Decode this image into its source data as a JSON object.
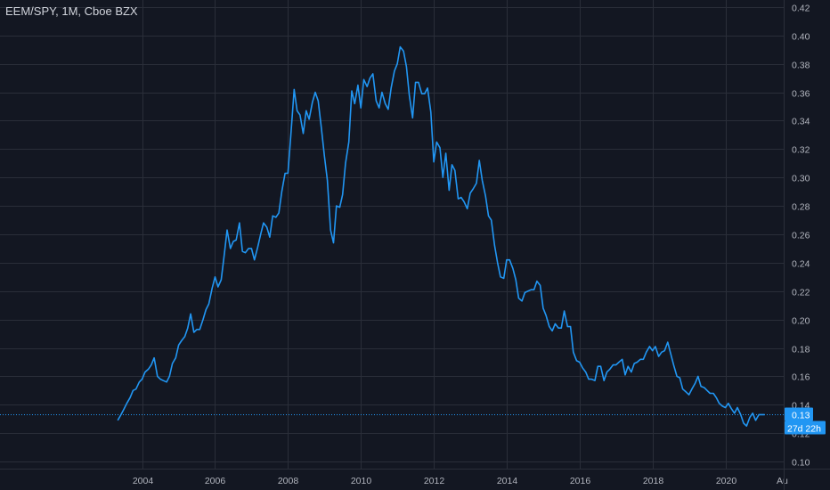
{
  "header": {
    "symbol_label": "EEM/SPY, 1M, Cboe BZX"
  },
  "colors": {
    "background": "#131722",
    "grid": "#2a2e39",
    "line": "#2196f3",
    "text": "#b2b5be",
    "badge": "#2196f3",
    "badge_text": "#ffffff"
  },
  "price_badge": {
    "value": "0.13",
    "countdown": "27d 22h"
  },
  "chart_data": {
    "type": "line",
    "title": "EEM/SPY, 1M, Cboe BZX",
    "xlabel": "",
    "ylabel": "",
    "xlim": [
      2000.1,
      2021.6
    ],
    "ylim": [
      0.095,
      0.425
    ],
    "x_ticks": [
      2004,
      2006,
      2008,
      2010,
      2012,
      2014,
      2016,
      2018,
      2020
    ],
    "x_tick_labels": [
      "2004",
      "2006",
      "2008",
      "2010",
      "2012",
      "2014",
      "2016",
      "2018",
      "2020"
    ],
    "x_extra_label": "Au",
    "y_ticks": [
      0.1,
      0.12,
      0.14,
      0.16,
      0.18,
      0.2,
      0.22,
      0.24,
      0.26,
      0.28,
      0.3,
      0.32,
      0.34,
      0.36,
      0.38,
      0.4,
      0.42
    ],
    "y_tick_labels": [
      "0.10",
      "0.12",
      "0.14",
      "0.16",
      "0.18",
      "0.20",
      "0.22",
      "0.24",
      "0.26",
      "0.28",
      "0.30",
      "0.32",
      "0.34",
      "0.36",
      "0.38",
      "0.40",
      "0.42"
    ],
    "grid": true,
    "current_value": 0.133,
    "series": [
      {
        "name": "",
        "points": [
          [
            2003.33,
            0.129
          ],
          [
            2003.42,
            0.133
          ],
          [
            2003.5,
            0.137
          ],
          [
            2003.58,
            0.141
          ],
          [
            2003.67,
            0.145
          ],
          [
            2003.75,
            0.15
          ],
          [
            2003.83,
            0.151
          ],
          [
            2003.92,
            0.156
          ],
          [
            2004.0,
            0.158
          ],
          [
            2004.08,
            0.163
          ],
          [
            2004.17,
            0.165
          ],
          [
            2004.25,
            0.168
          ],
          [
            2004.33,
            0.173
          ],
          [
            2004.42,
            0.16
          ],
          [
            2004.5,
            0.158
          ],
          [
            2004.58,
            0.157
          ],
          [
            2004.67,
            0.156
          ],
          [
            2004.75,
            0.16
          ],
          [
            2004.83,
            0.169
          ],
          [
            2004.92,
            0.173
          ],
          [
            2005.0,
            0.182
          ],
          [
            2005.08,
            0.185
          ],
          [
            2005.17,
            0.188
          ],
          [
            2005.25,
            0.194
          ],
          [
            2005.33,
            0.204
          ],
          [
            2005.42,
            0.191
          ],
          [
            2005.5,
            0.193
          ],
          [
            2005.58,
            0.193
          ],
          [
            2005.67,
            0.2
          ],
          [
            2005.75,
            0.207
          ],
          [
            2005.83,
            0.211
          ],
          [
            2005.92,
            0.222
          ],
          [
            2006.0,
            0.23
          ],
          [
            2006.08,
            0.223
          ],
          [
            2006.17,
            0.228
          ],
          [
            2006.25,
            0.245
          ],
          [
            2006.33,
            0.263
          ],
          [
            2006.42,
            0.25
          ],
          [
            2006.5,
            0.255
          ],
          [
            2006.58,
            0.256
          ],
          [
            2006.67,
            0.268
          ],
          [
            2006.75,
            0.248
          ],
          [
            2006.83,
            0.247
          ],
          [
            2006.92,
            0.25
          ],
          [
            2007.0,
            0.25
          ],
          [
            2007.08,
            0.242
          ],
          [
            2007.17,
            0.251
          ],
          [
            2007.25,
            0.26
          ],
          [
            2007.33,
            0.268
          ],
          [
            2007.42,
            0.265
          ],
          [
            2007.5,
            0.258
          ],
          [
            2007.58,
            0.273
          ],
          [
            2007.67,
            0.272
          ],
          [
            2007.75,
            0.275
          ],
          [
            2007.83,
            0.29
          ],
          [
            2007.92,
            0.303
          ],
          [
            2008.0,
            0.303
          ],
          [
            2008.08,
            0.33
          ],
          [
            2008.17,
            0.362
          ],
          [
            2008.25,
            0.347
          ],
          [
            2008.33,
            0.344
          ],
          [
            2008.42,
            0.331
          ],
          [
            2008.5,
            0.347
          ],
          [
            2008.58,
            0.341
          ],
          [
            2008.67,
            0.353
          ],
          [
            2008.75,
            0.36
          ],
          [
            2008.83,
            0.354
          ],
          [
            2008.92,
            0.334
          ],
          [
            2009.0,
            0.315
          ],
          [
            2009.08,
            0.298
          ],
          [
            2009.17,
            0.263
          ],
          [
            2009.25,
            0.254
          ],
          [
            2009.33,
            0.28
          ],
          [
            2009.42,
            0.279
          ],
          [
            2009.5,
            0.288
          ],
          [
            2009.58,
            0.31
          ],
          [
            2009.67,
            0.325
          ],
          [
            2009.75,
            0.361
          ],
          [
            2009.83,
            0.352
          ],
          [
            2009.92,
            0.365
          ],
          [
            2010.0,
            0.349
          ],
          [
            2010.08,
            0.369
          ],
          [
            2010.17,
            0.364
          ],
          [
            2010.25,
            0.37
          ],
          [
            2010.33,
            0.373
          ],
          [
            2010.42,
            0.354
          ],
          [
            2010.5,
            0.349
          ],
          [
            2010.58,
            0.36
          ],
          [
            2010.67,
            0.352
          ],
          [
            2010.75,
            0.348
          ],
          [
            2010.83,
            0.363
          ],
          [
            2010.92,
            0.375
          ],
          [
            2011.0,
            0.38
          ],
          [
            2011.08,
            0.392
          ],
          [
            2011.17,
            0.389
          ],
          [
            2011.25,
            0.378
          ],
          [
            2011.33,
            0.358
          ],
          [
            2011.42,
            0.342
          ],
          [
            2011.5,
            0.367
          ],
          [
            2011.58,
            0.367
          ],
          [
            2011.67,
            0.359
          ],
          [
            2011.75,
            0.359
          ],
          [
            2011.83,
            0.363
          ],
          [
            2011.92,
            0.346
          ],
          [
            2012.0,
            0.311
          ],
          [
            2012.08,
            0.325
          ],
          [
            2012.17,
            0.321
          ],
          [
            2012.25,
            0.3
          ],
          [
            2012.33,
            0.317
          ],
          [
            2012.42,
            0.291
          ],
          [
            2012.5,
            0.309
          ],
          [
            2012.58,
            0.305
          ],
          [
            2012.67,
            0.285
          ],
          [
            2012.75,
            0.286
          ],
          [
            2012.83,
            0.283
          ],
          [
            2012.92,
            0.278
          ],
          [
            2013.0,
            0.289
          ],
          [
            2013.08,
            0.292
          ],
          [
            2013.17,
            0.296
          ],
          [
            2013.25,
            0.312
          ],
          [
            2013.33,
            0.298
          ],
          [
            2013.42,
            0.287
          ],
          [
            2013.5,
            0.273
          ],
          [
            2013.58,
            0.27
          ],
          [
            2013.67,
            0.252
          ],
          [
            2013.75,
            0.24
          ],
          [
            2013.83,
            0.23
          ],
          [
            2013.92,
            0.229
          ],
          [
            2014.0,
            0.242
          ],
          [
            2014.08,
            0.242
          ],
          [
            2014.17,
            0.236
          ],
          [
            2014.25,
            0.228
          ],
          [
            2014.33,
            0.215
          ],
          [
            2014.42,
            0.213
          ],
          [
            2014.5,
            0.219
          ],
          [
            2014.58,
            0.22
          ],
          [
            2014.67,
            0.221
          ],
          [
            2014.75,
            0.221
          ],
          [
            2014.83,
            0.227
          ],
          [
            2014.92,
            0.224
          ],
          [
            2015.0,
            0.208
          ],
          [
            2015.08,
            0.203
          ],
          [
            2015.17,
            0.195
          ],
          [
            2015.25,
            0.192
          ],
          [
            2015.33,
            0.197
          ],
          [
            2015.42,
            0.194
          ],
          [
            2015.5,
            0.194
          ],
          [
            2015.58,
            0.206
          ],
          [
            2015.67,
            0.195
          ],
          [
            2015.75,
            0.195
          ],
          [
            2015.83,
            0.177
          ],
          [
            2015.92,
            0.171
          ],
          [
            2016.0,
            0.17
          ],
          [
            2016.08,
            0.166
          ],
          [
            2016.17,
            0.163
          ],
          [
            2016.25,
            0.158
          ],
          [
            2016.33,
            0.158
          ],
          [
            2016.42,
            0.157
          ],
          [
            2016.5,
            0.167
          ],
          [
            2016.58,
            0.167
          ],
          [
            2016.67,
            0.157
          ],
          [
            2016.75,
            0.163
          ],
          [
            2016.83,
            0.165
          ],
          [
            2016.92,
            0.168
          ],
          [
            2017.0,
            0.168
          ],
          [
            2017.08,
            0.17
          ],
          [
            2017.17,
            0.172
          ],
          [
            2017.25,
            0.161
          ],
          [
            2017.33,
            0.167
          ],
          [
            2017.42,
            0.163
          ],
          [
            2017.5,
            0.169
          ],
          [
            2017.58,
            0.17
          ],
          [
            2017.67,
            0.172
          ],
          [
            2017.75,
            0.172
          ],
          [
            2017.83,
            0.177
          ],
          [
            2017.92,
            0.181
          ],
          [
            2018.0,
            0.178
          ],
          [
            2018.08,
            0.181
          ],
          [
            2018.17,
            0.174
          ],
          [
            2018.25,
            0.177
          ],
          [
            2018.33,
            0.178
          ],
          [
            2018.42,
            0.184
          ],
          [
            2018.5,
            0.176
          ],
          [
            2018.58,
            0.168
          ],
          [
            2018.67,
            0.16
          ],
          [
            2018.75,
            0.159
          ],
          [
            2018.83,
            0.151
          ],
          [
            2018.92,
            0.149
          ],
          [
            2019.0,
            0.147
          ],
          [
            2019.08,
            0.151
          ],
          [
            2019.17,
            0.155
          ],
          [
            2019.25,
            0.16
          ],
          [
            2019.33,
            0.153
          ],
          [
            2019.42,
            0.152
          ],
          [
            2019.5,
            0.15
          ],
          [
            2019.58,
            0.148
          ],
          [
            2019.67,
            0.148
          ],
          [
            2019.75,
            0.145
          ],
          [
            2019.83,
            0.141
          ],
          [
            2019.92,
            0.139
          ],
          [
            2020.0,
            0.138
          ],
          [
            2020.08,
            0.141
          ],
          [
            2020.17,
            0.137
          ],
          [
            2020.25,
            0.134
          ],
          [
            2020.33,
            0.138
          ],
          [
            2020.42,
            0.133
          ],
          [
            2020.5,
            0.127
          ],
          [
            2020.58,
            0.125
          ],
          [
            2020.67,
            0.131
          ],
          [
            2020.75,
            0.134
          ],
          [
            2020.83,
            0.129
          ],
          [
            2020.92,
            0.133
          ],
          [
            2021.0,
            0.133
          ],
          [
            2021.08,
            0.133
          ]
        ]
      }
    ]
  }
}
